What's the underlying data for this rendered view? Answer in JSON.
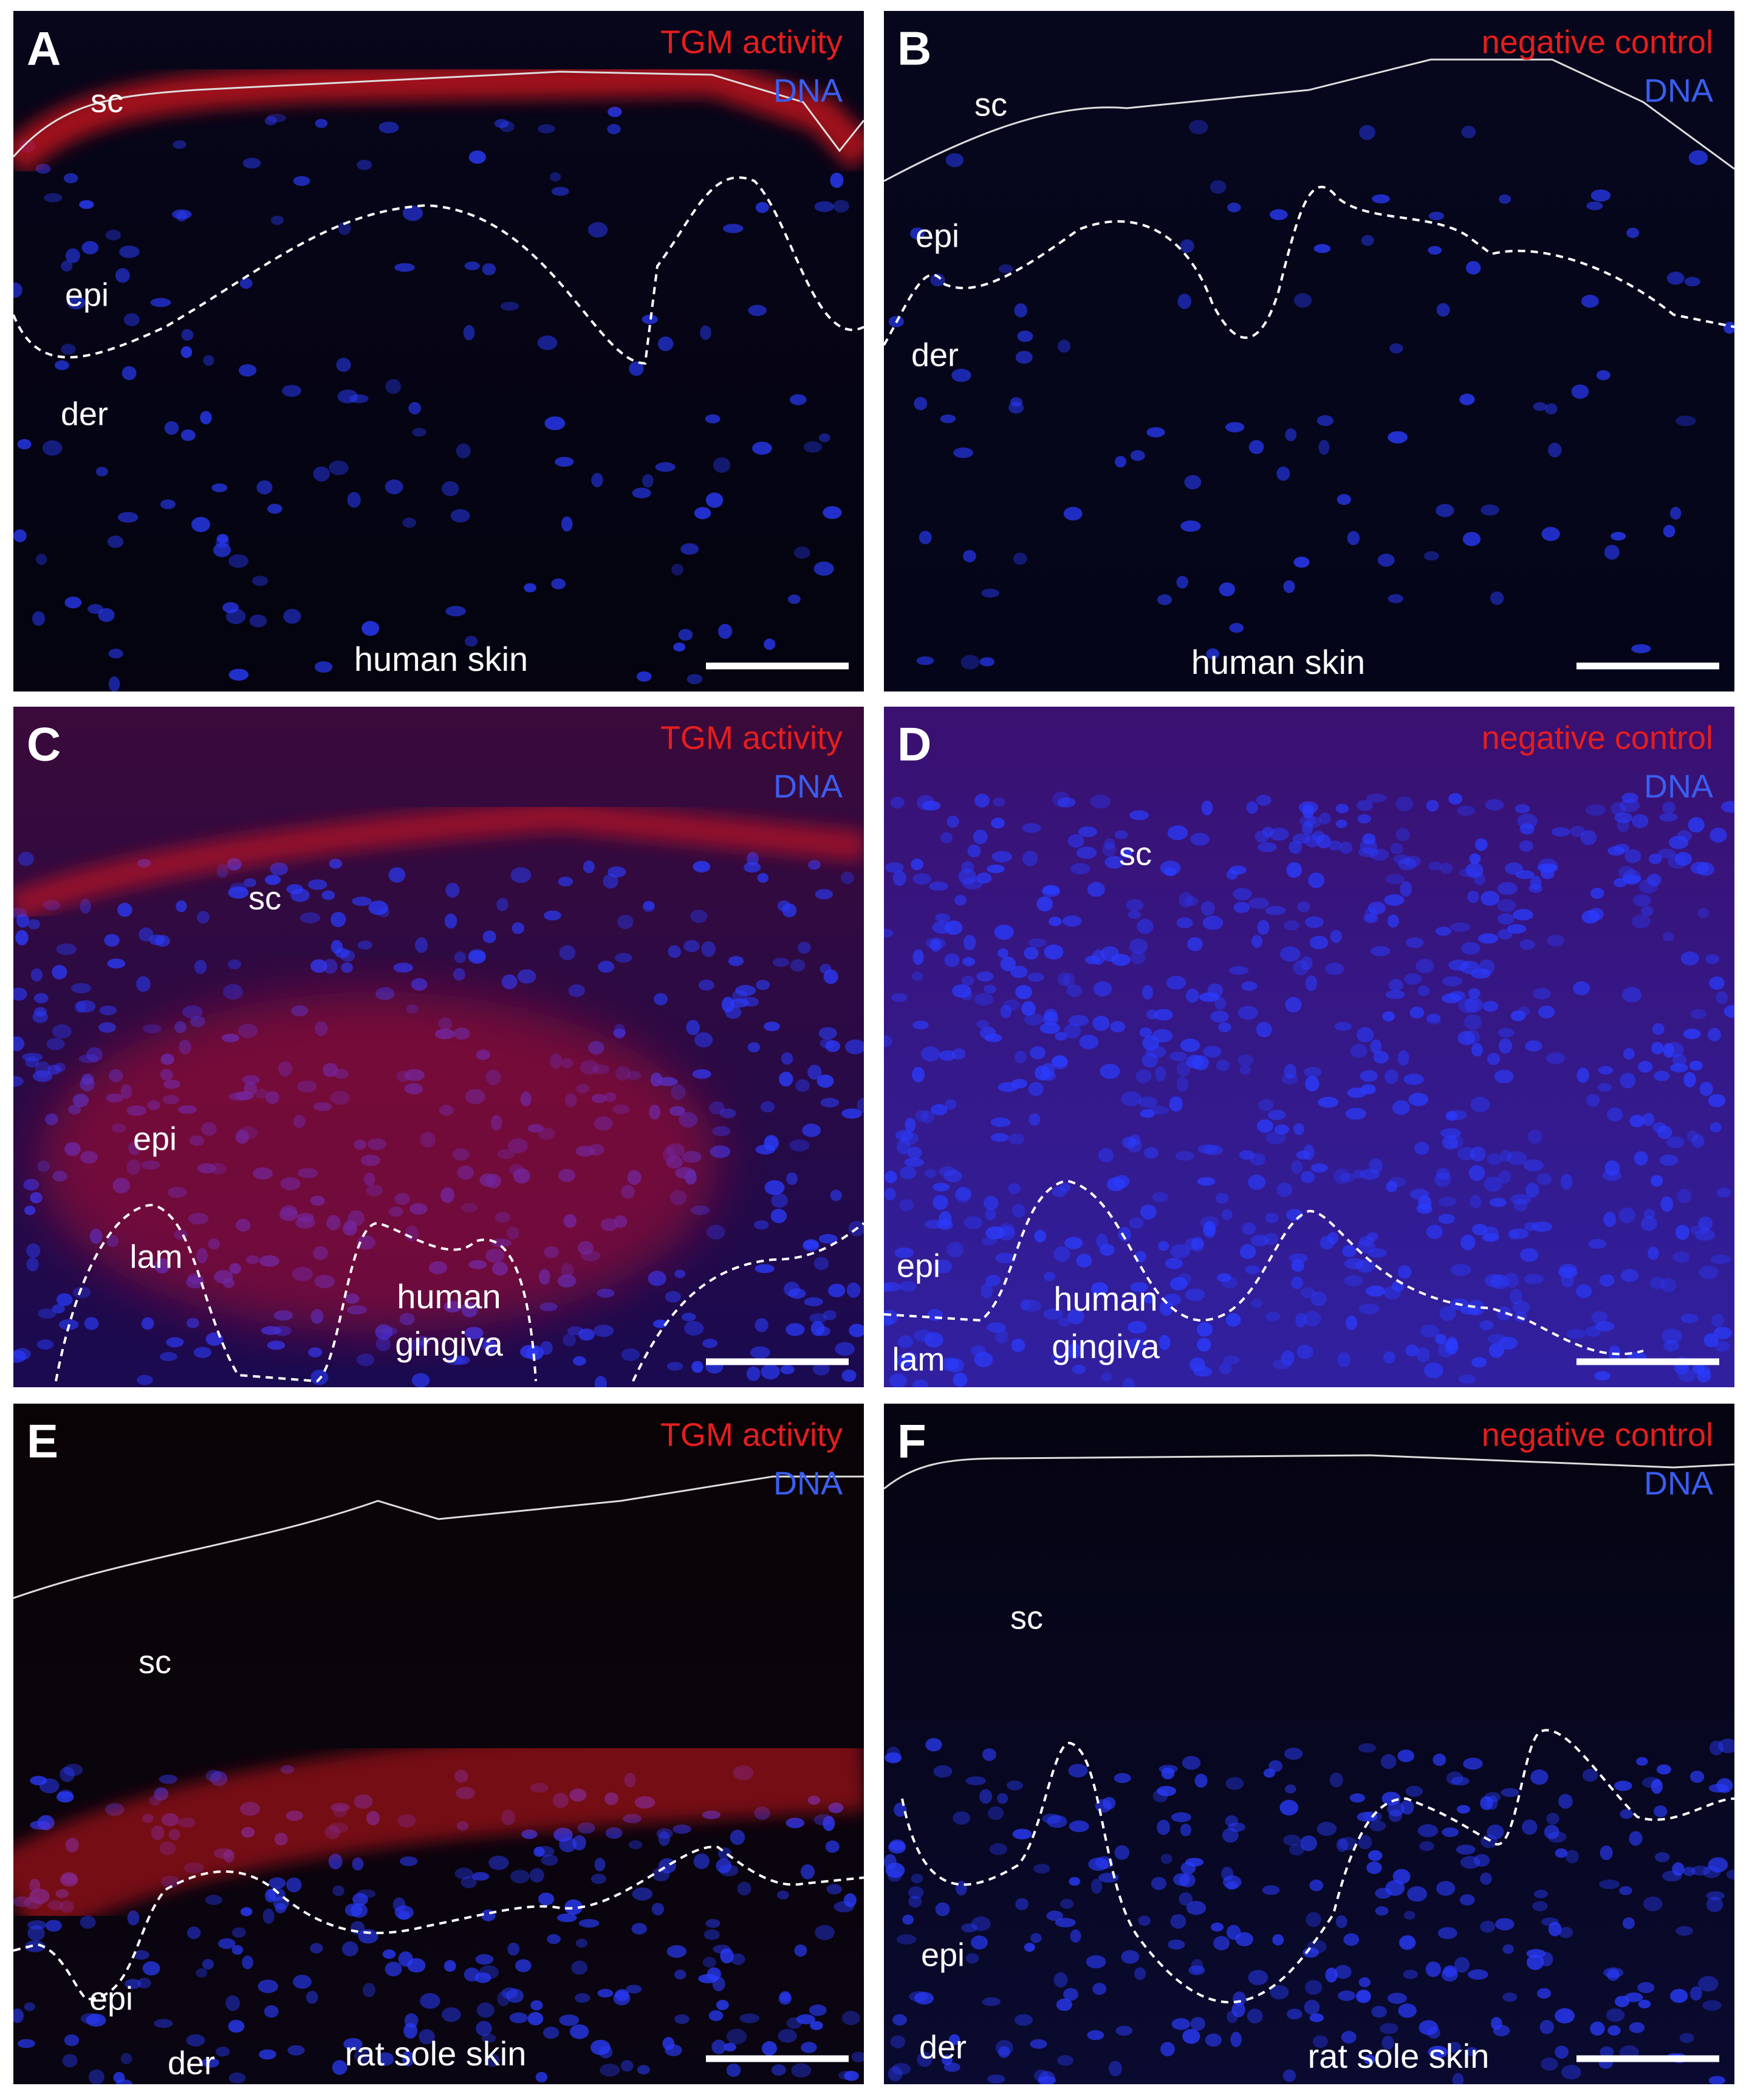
{
  "panels": [
    {
      "letter": "A",
      "stain": "TGM activity",
      "dna": "DNA",
      "regions": [
        "sc",
        "epi",
        "der"
      ],
      "tissue": [
        "human skin"
      ]
    },
    {
      "letter": "B",
      "stain": "negative control",
      "dna": "DNA",
      "regions": [
        "sc",
        "epi",
        "der"
      ],
      "tissue": [
        "human skin"
      ]
    },
    {
      "letter": "C",
      "stain": "TGM activity",
      "dna": "DNA",
      "regions": [
        "sc",
        "epi",
        "lam"
      ],
      "tissue": [
        "human",
        "gingiva"
      ]
    },
    {
      "letter": "D",
      "stain": "negative control",
      "dna": "DNA",
      "regions": [
        "sc",
        "epi",
        "lam"
      ],
      "tissue": [
        "human",
        "gingiva"
      ]
    },
    {
      "letter": "E",
      "stain": "TGM activity",
      "dna": "DNA",
      "regions": [
        "sc",
        "epi",
        "der"
      ],
      "tissue": [
        "rat sole skin"
      ]
    },
    {
      "letter": "F",
      "stain": "negative control",
      "dna": "DNA",
      "regions": [
        "sc",
        "epi",
        "der"
      ],
      "tissue": [
        "rat sole skin"
      ]
    }
  ]
}
